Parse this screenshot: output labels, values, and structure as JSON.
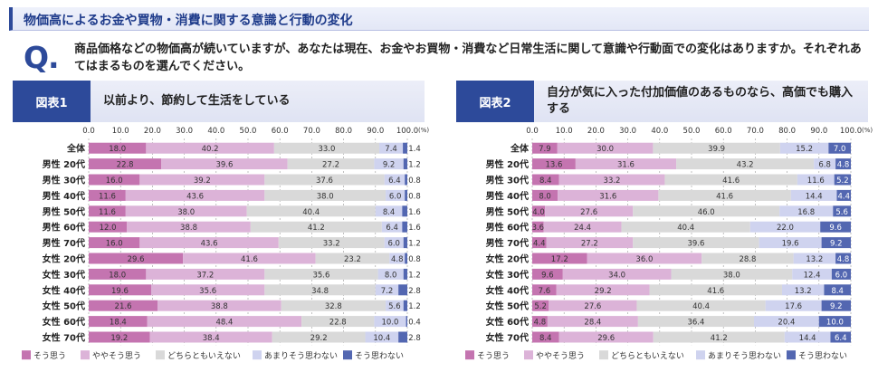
{
  "header": {
    "title": "物価高によるお金や買物・消費に関する意識と行動の変化"
  },
  "question": {
    "mark": "Q.",
    "text": "商品価格などの物価高が続いていますが、あなたは現在、お金やお買物・消費など日常生活に関して意識や行動面での変化はありますか。それぞれあてはまるものを選んでください。"
  },
  "colors": {
    "so_omou": "#c474b0",
    "yaya": "#dcb3d8",
    "dochira": "#d9d9d9",
    "amari": "#cfd3ef",
    "omowanai": "#5367b1"
  },
  "chart_data": [
    {
      "type": "bar",
      "orientation": "horizontal",
      "stacked": true,
      "badge": "図表1",
      "title": "以前より、節約して生活をしている",
      "unit": "(%)",
      "xlim": [
        0,
        100
      ],
      "x_ticks": [
        "0.0",
        "10.0",
        "20.0",
        "30.0",
        "40.0",
        "50.0",
        "60.0",
        "70.0",
        "80.0",
        "90.0",
        "100.0"
      ],
      "categories": [
        "全体",
        "男性 20代",
        "男性 30代",
        "男性 40代",
        "男性 50代",
        "男性 60代",
        "男性 70代",
        "女性 20代",
        "女性 30代",
        "女性 40代",
        "女性 50代",
        "女性 60代",
        "女性 70代"
      ],
      "series": [
        {
          "name": "そう思う",
          "values": [
            18.0,
            22.8,
            16.0,
            11.6,
            11.6,
            12.0,
            16.0,
            29.6,
            18.0,
            19.6,
            21.6,
            18.4,
            19.2
          ]
        },
        {
          "name": "ややそう思う",
          "values": [
            40.2,
            39.6,
            39.2,
            43.6,
            38.0,
            38.8,
            43.6,
            41.6,
            37.2,
            35.6,
            38.8,
            48.4,
            38.4
          ]
        },
        {
          "name": "どちらともいえない",
          "values": [
            33.0,
            27.2,
            37.6,
            38.0,
            40.4,
            41.2,
            33.2,
            23.2,
            35.6,
            34.8,
            32.8,
            22.8,
            29.2
          ]
        },
        {
          "name": "あまりそう思わない",
          "values": [
            7.4,
            9.2,
            6.4,
            6.0,
            8.4,
            6.4,
            6.0,
            4.8,
            8.0,
            7.2,
            5.6,
            10.0,
            10.4
          ]
        },
        {
          "name": "そう思わない",
          "values": [
            1.4,
            1.2,
            0.8,
            0.8,
            1.6,
            1.6,
            1.2,
            0.8,
            1.2,
            2.8,
            1.2,
            0.4,
            2.8
          ]
        }
      ],
      "legend_position": "bottom"
    },
    {
      "type": "bar",
      "orientation": "horizontal",
      "stacked": true,
      "badge": "図表2",
      "title": "自分が気に入った付加価値のあるものなら、高価でも購入する",
      "unit": "(%)",
      "xlim": [
        0,
        100
      ],
      "x_ticks": [
        "0.0",
        "10.0",
        "20.0",
        "30.0",
        "40.0",
        "50.0",
        "60.0",
        "70.0",
        "80.0",
        "90.0",
        "100.0"
      ],
      "categories": [
        "全体",
        "男性 20代",
        "男性 30代",
        "男性 40代",
        "男性 50代",
        "男性 60代",
        "男性 70代",
        "女性 20代",
        "女性 30代",
        "女性 40代",
        "女性 50代",
        "女性 60代",
        "女性 70代"
      ],
      "series": [
        {
          "name": "そう思う",
          "values": [
            7.9,
            13.6,
            8.4,
            8.0,
            4.0,
            3.6,
            4.4,
            17.2,
            9.6,
            7.6,
            5.2,
            4.8,
            8.4
          ]
        },
        {
          "name": "ややそう思う",
          "values": [
            30.0,
            31.6,
            33.2,
            31.6,
            27.6,
            24.4,
            27.2,
            36.0,
            34.0,
            29.2,
            27.6,
            28.4,
            29.6
          ]
        },
        {
          "name": "どちらともいえない",
          "values": [
            39.9,
            43.2,
            41.6,
            41.6,
            46.0,
            40.4,
            39.6,
            28.8,
            38.0,
            41.6,
            40.4,
            36.4,
            41.2
          ]
        },
        {
          "name": "あまりそう思わない",
          "values": [
            15.2,
            6.8,
            11.6,
            14.4,
            16.8,
            22.0,
            19.6,
            13.2,
            12.4,
            13.2,
            17.6,
            20.4,
            14.4
          ]
        },
        {
          "name": "そう思わない",
          "values": [
            7.0,
            4.8,
            5.2,
            4.4,
            5.6,
            9.6,
            9.2,
            4.8,
            6.0,
            8.4,
            9.2,
            10.0,
            6.4
          ]
        }
      ],
      "legend_position": "bottom"
    }
  ]
}
